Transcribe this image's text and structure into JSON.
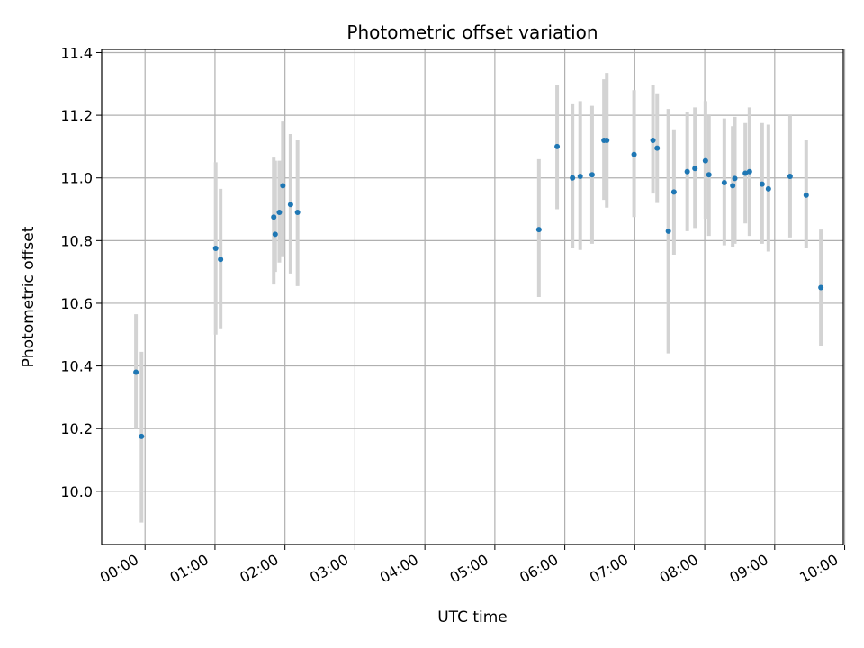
{
  "chart_data": {
    "type": "scatter",
    "title": "Photometric offset variation",
    "xlabel": "UTC time",
    "ylabel": "Photometric offset",
    "x_unit": "hours (UTC)",
    "xlim": [
      -0.62,
      9.98
    ],
    "ylim": [
      9.83,
      11.41
    ],
    "x_ticks": [
      0,
      1,
      2,
      3,
      4,
      5,
      6,
      7,
      8,
      9,
      10
    ],
    "x_tick_labels": [
      "00:00",
      "01:00",
      "02:00",
      "03:00",
      "04:00",
      "05:00",
      "06:00",
      "07:00",
      "08:00",
      "09:00",
      "10:00"
    ],
    "y_ticks": [
      10.0,
      10.2,
      10.4,
      10.6,
      10.8,
      11.0,
      11.2,
      11.4
    ],
    "y_tick_labels": [
      "10.0",
      "10.2",
      "10.4",
      "10.6",
      "10.8",
      "11.0",
      "11.2",
      "11.4"
    ],
    "grid": true,
    "marker_color": "#1f77b4",
    "errorbar_color": "#d3d3d3",
    "points": [
      {
        "x": -0.13,
        "y": 10.38,
        "lo": 10.2,
        "hi": 10.565
      },
      {
        "x": -0.05,
        "y": 10.175,
        "lo": 9.9,
        "hi": 10.445
      },
      {
        "x": 1.01,
        "y": 10.775,
        "lo": 10.5,
        "hi": 11.05
      },
      {
        "x": 1.08,
        "y": 10.74,
        "lo": 10.52,
        "hi": 10.965
      },
      {
        "x": 1.84,
        "y": 10.875,
        "lo": 10.66,
        "hi": 11.065
      },
      {
        "x": 1.86,
        "y": 10.82,
        "lo": 10.7,
        "hi": 11.055
      },
      {
        "x": 1.92,
        "y": 10.89,
        "lo": 10.73,
        "hi": 11.055
      },
      {
        "x": 1.97,
        "y": 10.975,
        "lo": 10.75,
        "hi": 11.18
      },
      {
        "x": 2.08,
        "y": 10.915,
        "lo": 10.695,
        "hi": 11.14
      },
      {
        "x": 2.18,
        "y": 10.89,
        "lo": 10.655,
        "hi": 11.12
      },
      {
        "x": 5.63,
        "y": 10.835,
        "lo": 10.62,
        "hi": 11.06
      },
      {
        "x": 5.89,
        "y": 11.1,
        "lo": 10.9,
        "hi": 11.295
      },
      {
        "x": 6.11,
        "y": 11.0,
        "lo": 10.775,
        "hi": 11.235
      },
      {
        "x": 6.22,
        "y": 11.005,
        "lo": 10.77,
        "hi": 11.245
      },
      {
        "x": 6.39,
        "y": 11.01,
        "lo": 10.79,
        "hi": 11.23
      },
      {
        "x": 6.56,
        "y": 11.12,
        "lo": 10.93,
        "hi": 11.315
      },
      {
        "x": 6.6,
        "y": 11.12,
        "lo": 10.905,
        "hi": 11.335
      },
      {
        "x": 6.99,
        "y": 11.075,
        "lo": 10.875,
        "hi": 11.28
      },
      {
        "x": 7.26,
        "y": 11.12,
        "lo": 10.95,
        "hi": 11.295
      },
      {
        "x": 7.32,
        "y": 11.095,
        "lo": 10.92,
        "hi": 11.27
      },
      {
        "x": 7.48,
        "y": 10.83,
        "lo": 10.44,
        "hi": 11.22
      },
      {
        "x": 7.56,
        "y": 10.955,
        "lo": 10.755,
        "hi": 11.155
      },
      {
        "x": 7.75,
        "y": 11.02,
        "lo": 10.83,
        "hi": 11.21
      },
      {
        "x": 7.86,
        "y": 11.03,
        "lo": 10.84,
        "hi": 11.225
      },
      {
        "x": 8.01,
        "y": 11.055,
        "lo": 10.87,
        "hi": 11.245
      },
      {
        "x": 8.06,
        "y": 11.01,
        "lo": 10.815,
        "hi": 11.2
      },
      {
        "x": 8.28,
        "y": 10.985,
        "lo": 10.785,
        "hi": 11.19
      },
      {
        "x": 8.4,
        "y": 10.975,
        "lo": 10.78,
        "hi": 11.165
      },
      {
        "x": 8.43,
        "y": 10.998,
        "lo": 10.79,
        "hi": 11.195
      },
      {
        "x": 8.58,
        "y": 11.015,
        "lo": 10.855,
        "hi": 11.175
      },
      {
        "x": 8.64,
        "y": 11.02,
        "lo": 10.815,
        "hi": 11.225
      },
      {
        "x": 8.82,
        "y": 10.98,
        "lo": 10.79,
        "hi": 11.175
      },
      {
        "x": 8.91,
        "y": 10.965,
        "lo": 10.765,
        "hi": 11.17
      },
      {
        "x": 9.22,
        "y": 11.005,
        "lo": 10.81,
        "hi": 11.2
      },
      {
        "x": 9.45,
        "y": 10.945,
        "lo": 10.775,
        "hi": 11.12
      },
      {
        "x": 9.66,
        "y": 10.65,
        "lo": 10.465,
        "hi": 10.835
      }
    ]
  }
}
